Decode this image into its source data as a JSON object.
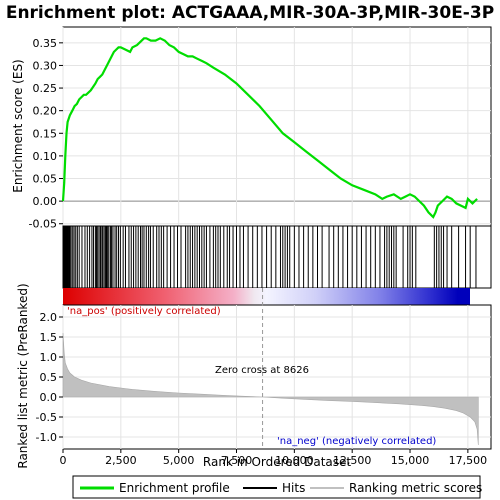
{
  "chart_data": {
    "type": "line",
    "title": "Enrichment plot: ACTGAAA,MIR-30A-3P,MIR-30E-3P",
    "xlabel": "Rank in Ordered Dataset",
    "ylabel_top": "Enrichment score (ES)",
    "ylabel_bottom": "Ranked list metric (PreRanked)",
    "xlim": [
      0,
      18500
    ],
    "ylim_top": [
      -0.055,
      0.385
    ],
    "ylim_bottom": [
      -1.3,
      2.3
    ],
    "x_ticks": [
      0,
      2500,
      5000,
      7500,
      10000,
      12500,
      15000,
      17500
    ],
    "x_tick_labels": [
      "0",
      "2,500",
      "5,000",
      "7,500",
      "10,000",
      "12,500",
      "15,000",
      "17,500"
    ],
    "y_ticks_top": [
      -0.05,
      0.0,
      0.05,
      0.1,
      0.15,
      0.2,
      0.25,
      0.3,
      0.35
    ],
    "y_tick_labels_top": [
      "-0.05",
      "0.00",
      "0.05",
      "0.10",
      "0.15",
      "0.20",
      "0.25",
      "0.30",
      "0.35"
    ],
    "y_ticks_bottom": [
      -1.0,
      -0.5,
      0.0,
      0.5,
      1.0,
      1.5,
      2.0
    ],
    "y_tick_labels_bottom": [
      "-1.0",
      "-0.5",
      "0.0",
      "0.5",
      "1.0",
      "1.5",
      "2.0"
    ],
    "series": [
      {
        "name": "Enrichment profile",
        "color": "#00dd00",
        "x": [
          0,
          50,
          100,
          150,
          200,
          300,
          400,
          500,
          600,
          700,
          800,
          900,
          1000,
          1200,
          1400,
          1500,
          1600,
          1700,
          1800,
          1900,
          2000,
          2100,
          2200,
          2300,
          2400,
          2500,
          2700,
          2900,
          3000,
          3200,
          3400,
          3500,
          3600,
          3800,
          4000,
          4200,
          4400,
          4600,
          4800,
          5000,
          5200,
          5400,
          5600,
          5800,
          6000,
          6200,
          6500,
          7000,
          7500,
          8000,
          8500,
          9000,
          9500,
          10000,
          10500,
          11000,
          11500,
          12000,
          12500,
          13000,
          13500,
          13800,
          14000,
          14300,
          14600,
          14800,
          15000,
          15200,
          15400,
          15600,
          15800,
          16000,
          16100,
          16200,
          16400,
          16600,
          16800,
          17000,
          17200,
          17400,
          17500,
          17700,
          17900
        ],
        "y": [
          0.0,
          0.04,
          0.1,
          0.15,
          0.175,
          0.19,
          0.2,
          0.21,
          0.215,
          0.225,
          0.23,
          0.235,
          0.235,
          0.245,
          0.26,
          0.27,
          0.275,
          0.28,
          0.29,
          0.3,
          0.31,
          0.32,
          0.33,
          0.335,
          0.34,
          0.34,
          0.335,
          0.33,
          0.34,
          0.345,
          0.355,
          0.36,
          0.36,
          0.355,
          0.355,
          0.36,
          0.355,
          0.345,
          0.34,
          0.33,
          0.325,
          0.32,
          0.32,
          0.315,
          0.31,
          0.305,
          0.295,
          0.28,
          0.26,
          0.235,
          0.21,
          0.18,
          0.15,
          0.13,
          0.11,
          0.09,
          0.07,
          0.05,
          0.035,
          0.025,
          0.015,
          0.005,
          0.01,
          0.015,
          0.005,
          0.01,
          0.015,
          0.01,
          0.0,
          -0.01,
          -0.025,
          -0.035,
          -0.025,
          -0.01,
          0.0,
          0.01,
          0.005,
          -0.005,
          -0.01,
          -0.015,
          0.005,
          -0.005,
          0.005
        ]
      }
    ],
    "hits_x": [
      20,
      40,
      60,
      80,
      100,
      120,
      140,
      160,
      180,
      200,
      230,
      260,
      300,
      350,
      420,
      480,
      550,
      620,
      700,
      820,
      950,
      1050,
      1150,
      1250,
      1320,
      1400,
      1450,
      1500,
      1560,
      1620,
      1680,
      1720,
      1780,
      1840,
      1880,
      1930,
      1980,
      2050,
      2100,
      2160,
      2250,
      2320,
      2400,
      2480,
      2600,
      2700,
      2850,
      2950,
      3050,
      3150,
      3250,
      3350,
      3420,
      3500,
      3600,
      3700,
      3780,
      3900,
      4050,
      4150,
      4250,
      4350,
      4500,
      4650,
      4800,
      4950,
      5100,
      5300,
      5400,
      5500,
      5600,
      5700,
      5800,
      5900,
      6000,
      6100,
      6200,
      6350,
      6500,
      6600,
      6700,
      6800,
      6950,
      7100,
      7200,
      7350,
      7500,
      7650,
      7800,
      8000,
      8200,
      8400,
      8600,
      8800,
      9000,
      9200,
      9400,
      9500,
      9600,
      9700,
      9800,
      10000,
      10200,
      10400,
      10600,
      10800,
      11000,
      11200,
      11500,
      11700,
      11900,
      12100,
      12300,
      12500,
      12700,
      12900,
      13100,
      13300,
      13500,
      13700,
      13900,
      14000,
      14100,
      14200,
      14300,
      14400,
      14700,
      14900,
      15000,
      15100,
      15250,
      16050,
      16150,
      16250,
      16350,
      16450,
      16600,
      16800,
      17100,
      17400,
      17600,
      17850
    ],
    "metric_x": [
      0,
      50,
      100,
      200,
      300,
      500,
      800,
      1200,
      2000,
      3000,
      4000,
      5000,
      6000,
      7000,
      8000,
      8626,
      9500,
      10500,
      11500,
      12500,
      13500,
      14500,
      15500,
      16000,
      16500,
      17000,
      17300,
      17600,
      17800,
      17900,
      17950
    ],
    "metric_y": [
      1.6,
      1.1,
      0.85,
      0.7,
      0.6,
      0.5,
      0.42,
      0.35,
      0.26,
      0.19,
      0.14,
      0.1,
      0.07,
      0.04,
      0.015,
      0.0,
      -0.03,
      -0.06,
      -0.09,
      -0.11,
      -0.14,
      -0.17,
      -0.21,
      -0.24,
      -0.28,
      -0.34,
      -0.4,
      -0.5,
      -0.62,
      -0.8,
      -1.2
    ],
    "zero_cross_rank": 8626,
    "zero_cross_label": "Zero cross at 8626",
    "pos_label": "'na_pos' (positively correlated)",
    "neg_label": "'na_neg' (negatively correlated)",
    "legend": [
      "Enrichment profile",
      "Hits",
      "Ranking metric scores"
    ],
    "legend_placement": "bottom",
    "colors": {
      "es_line": "#00dd00",
      "hits": "#000000",
      "metric_fill": "#c0c0c0",
      "pos_text": "#cc0000",
      "neg_text": "#0000cc",
      "zero_line": "#999999"
    }
  }
}
